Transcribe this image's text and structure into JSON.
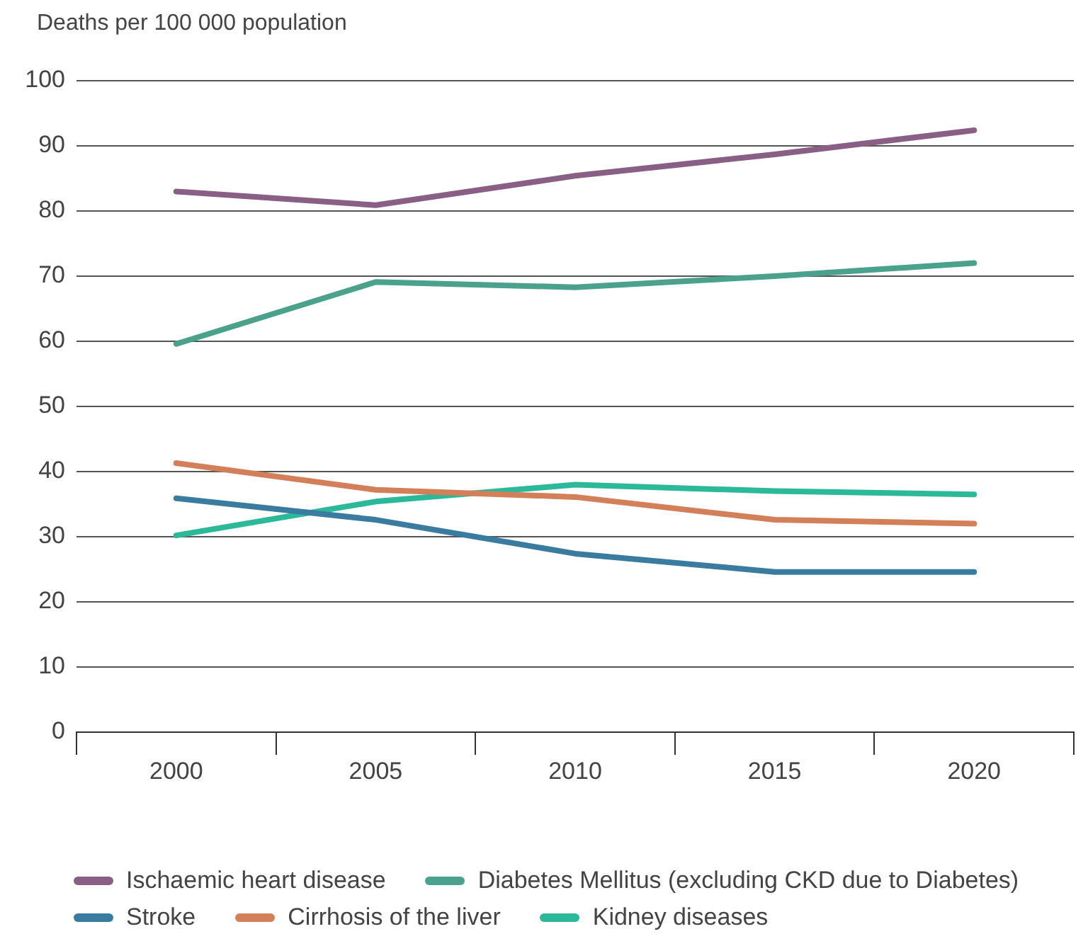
{
  "chart_data": {
    "type": "line",
    "ylabel": "Deaths per 100 000 population",
    "categories": [
      "2000",
      "2005",
      "2010",
      "2015",
      "2020"
    ],
    "ylim": [
      0,
      100
    ],
    "yticks": [
      0,
      10,
      20,
      30,
      40,
      50,
      60,
      70,
      80,
      90,
      100
    ],
    "grid": "y",
    "legend": "bottom",
    "marker": "none",
    "line_style": "solid",
    "series": [
      {
        "name": "Ischaemic heart disease",
        "color": "#8a5f85",
        "values": [
          83.0,
          80.9,
          85.4,
          88.7,
          92.4
        ]
      },
      {
        "name": "Diabetes Mellitus (excluding CKD due to Diabetes)",
        "color": "#4aa18c",
        "values": [
          59.6,
          69.1,
          68.3,
          70.0,
          72.0
        ]
      },
      {
        "name": "Stroke",
        "color": "#3a7ba0",
        "values": [
          35.9,
          32.6,
          27.4,
          24.6,
          24.6
        ]
      },
      {
        "name": "Cirrhosis of the liver",
        "color": "#d27f5a",
        "values": [
          41.3,
          37.2,
          36.1,
          32.6,
          32.0
        ]
      },
      {
        "name": "Kidney diseases",
        "color": "#2bb99a",
        "values": [
          30.2,
          35.4,
          38.0,
          37.0,
          36.5
        ]
      }
    ]
  }
}
